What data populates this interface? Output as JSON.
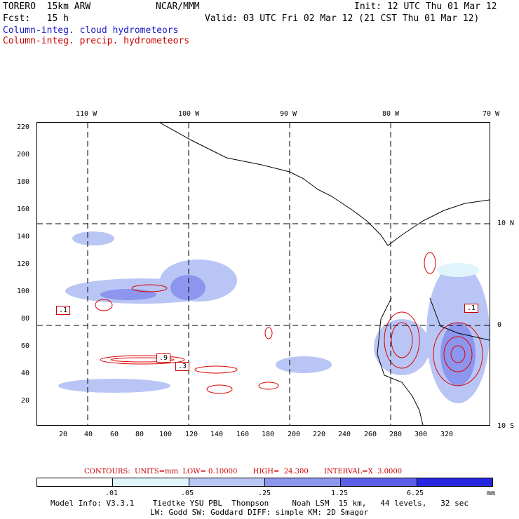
{
  "header": {
    "model": "TORERO  15km ARW",
    "org": "NCAR/MMM",
    "init": "Init: 12 UTC Thu 01 Mar 12",
    "fcst": "Fcst:   15 h",
    "valid": "Valid: 03 UTC Fri 02 Mar 12 (21 CST Thu 01 Mar 12)",
    "legend_cloud": "Column-integ. cloud hydrometeors",
    "legend_precip": "Column-integ. precip. hydrometeors"
  },
  "map": {
    "lon_labels": [
      "110 W",
      "100 W",
      "90 W",
      "80 W",
      "70 W"
    ],
    "lat_labels": [
      "10 N",
      "0",
      "10 S"
    ],
    "y_ticks": [
      "220",
      "200",
      "180",
      "160",
      "140",
      "120",
      "100",
      "80",
      "60",
      "40",
      "20"
    ],
    "x_ticks": [
      "20",
      "40",
      "60",
      "80",
      "100",
      "120",
      "140",
      "160",
      "180",
      "200",
      "220",
      "240",
      "260",
      "280",
      "300",
      "320"
    ],
    "contour_labels": [
      ".1",
      ".9",
      ".3",
      ".1"
    ]
  },
  "contours": {
    "text": "CONTOURS:  UNITS=mm  LOW= 0.10000       HIGH=  24.300       INTERVAL=X  3.0000"
  },
  "colorbar": {
    "colors": [
      "#ffffff",
      "#e0f4fb",
      "#b9c6f5",
      "#8c96ee",
      "#5c60e8",
      "#2626e0"
    ],
    "labels": [
      ".01",
      ".05",
      ".25",
      "1.25",
      "6.25"
    ],
    "unit": "mm"
  },
  "footer": {
    "line1": "Model Info: V3.3.1    Tiedtke YSU PBL  Thompson     Noah LSM  15 km,   44 levels,   32 sec",
    "line2": "LW: Godd SW: Goddard DIFF: simple KM: 2D Smagor"
  }
}
